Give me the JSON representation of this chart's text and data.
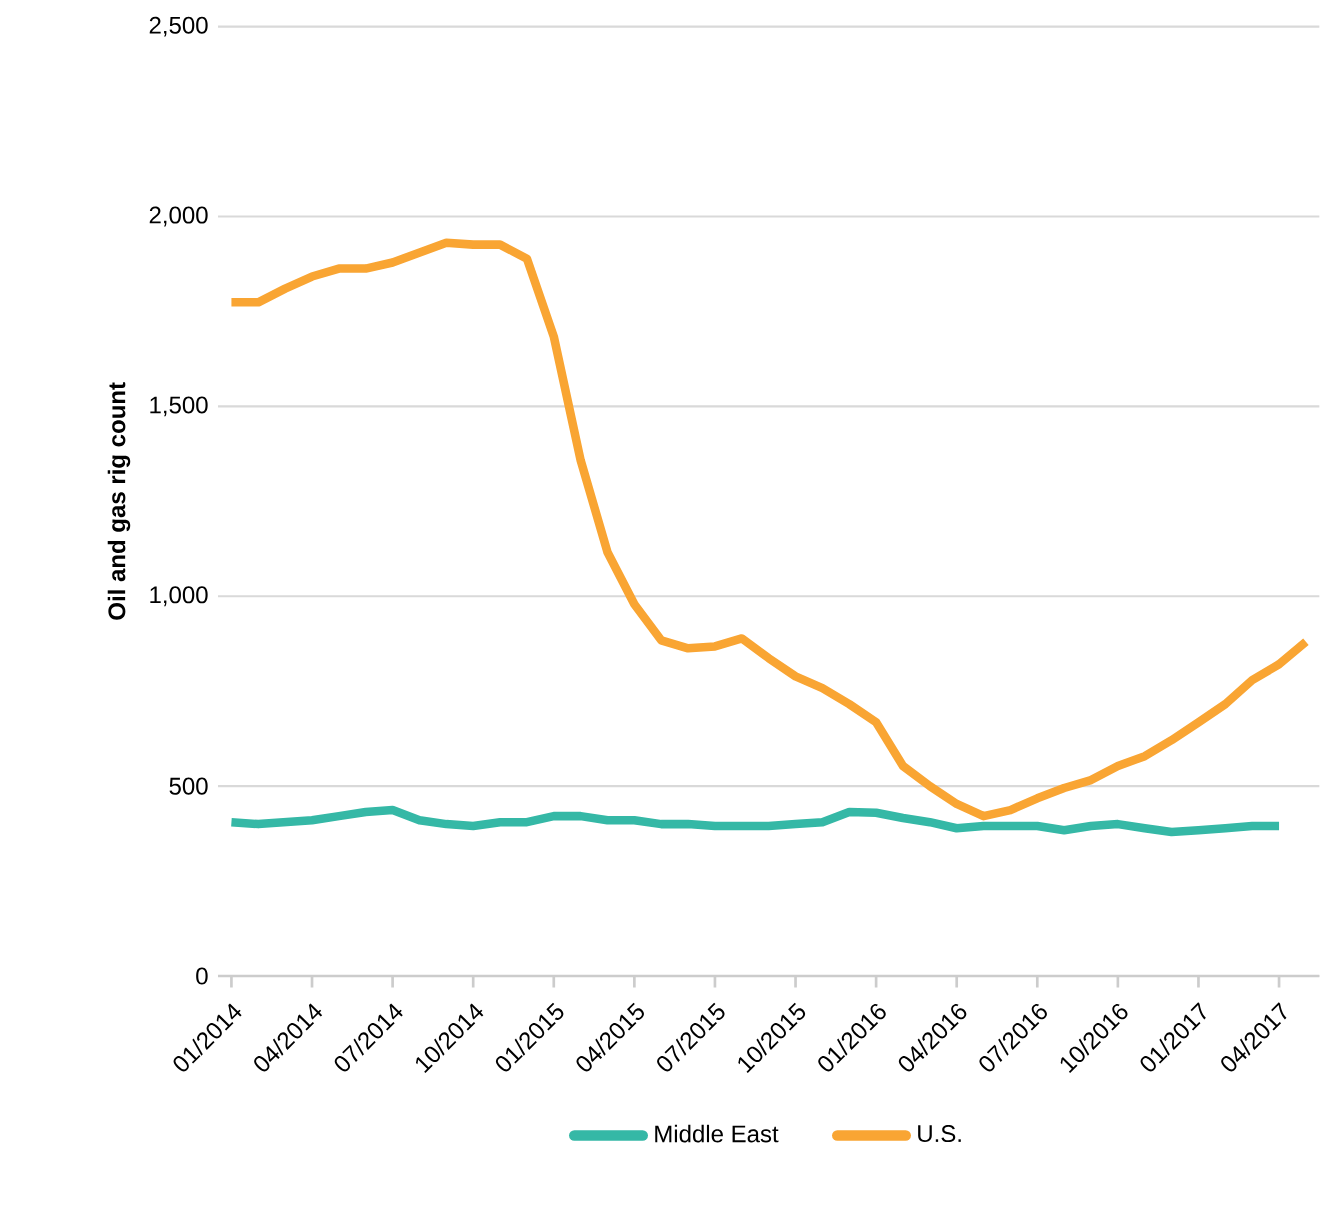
{
  "chart_data": {
    "type": "line",
    "ylabel": "Oil and gas rig count",
    "categories": [
      "01/2014",
      null,
      null,
      "04/2014",
      null,
      null,
      "07/2014",
      null,
      null,
      "10/2014",
      null,
      null,
      "01/2015",
      null,
      null,
      "04/2015",
      null,
      null,
      "07/2015",
      null,
      null,
      "10/2015",
      null,
      null,
      "01/2016",
      null,
      null,
      "04/2016",
      null,
      null,
      "07/2016",
      null,
      null,
      "10/2016",
      null,
      null,
      "01/2017",
      null,
      null,
      "04/2017",
      null
    ],
    "series": [
      {
        "name": "Middle East",
        "color": "#35b8a6",
        "values": [
          405,
          400,
          405,
          410,
          421,
          432,
          437,
          410,
          400,
          395,
          405,
          405,
          421,
          421,
          410,
          410,
          400,
          400,
          395,
          395,
          395,
          400,
          405,
          432,
          430,
          416,
          405,
          389,
          395,
          395,
          395,
          384,
          395,
          400,
          389,
          379,
          384,
          389,
          395,
          395,
          null
        ]
      },
      {
        "name": "U.S.",
        "color": "#f9a533",
        "values": [
          1774,
          1774,
          1810,
          1842,
          1863,
          1863,
          1879,
          1905,
          1931,
          1926,
          1926,
          1889,
          1684,
          1358,
          1116,
          979,
          884,
          863,
          868,
          889,
          837,
          789,
          758,
          716,
          668,
          553,
          500,
          453,
          421,
          437,
          468,
          495,
          516,
          553,
          579,
          621,
          668,
          716,
          779,
          821,
          880
        ]
      }
    ],
    "ylim": [
      0,
      2500
    ],
    "yticks": [
      0,
      500,
      {
        "value": 1000,
        "label": "1,000"
      },
      {
        "value": 1500,
        "label": "1,500"
      },
      {
        "value": 2000,
        "label": "2,000"
      },
      {
        "value": 2500,
        "label": "2,500"
      }
    ],
    "grid": "y",
    "legend": "bottom",
    "marker": "none",
    "line_style": "solid"
  }
}
